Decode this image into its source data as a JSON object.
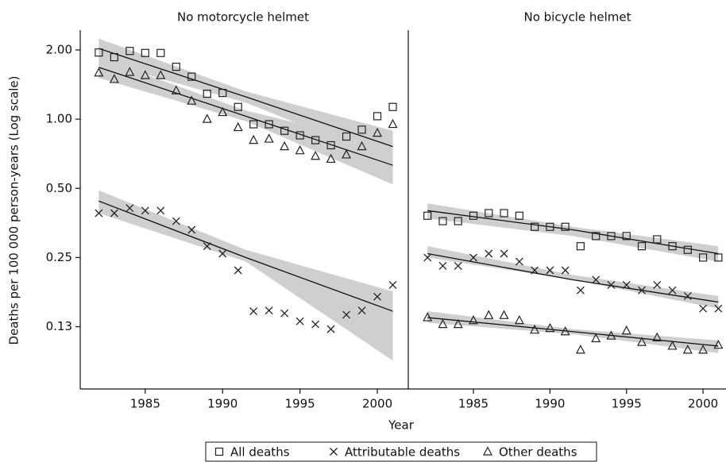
{
  "chart_data": [
    {
      "type": "scatter",
      "title": "No motorcycle helmet",
      "ylabel": "Deaths per 100 000 person-years (Log scale)",
      "xlabel": "Year",
      "log_y": true,
      "ylim": [
        0.067,
        2.4
      ],
      "yticks": [
        {
          "value": 0.125,
          "label": "0.13"
        },
        {
          "value": 0.25,
          "label": "0.25"
        },
        {
          "value": 0.5,
          "label": "0.50"
        },
        {
          "value": 1,
          "label": "1.00"
        },
        {
          "value": 2,
          "label": "2.00"
        }
      ],
      "xlim": [
        1980.8,
        2002
      ],
      "xticks": [
        1985,
        1990,
        1995,
        2000
      ],
      "x": [
        1982,
        1983,
        1984,
        1985,
        1986,
        1987,
        1988,
        1989,
        1990,
        1991,
        1992,
        1993,
        1994,
        1995,
        1996,
        1997,
        1998,
        1999,
        2000,
        2001
      ],
      "series": [
        {
          "name": "All deaths",
          "marker": "square",
          "color": "#222",
          "values": [
            1.95,
            1.86,
            1.98,
            1.94,
            1.94,
            1.69,
            1.53,
            1.29,
            1.3,
            1.13,
            0.95,
            0.95,
            0.89,
            0.85,
            0.81,
            0.77,
            0.84,
            0.9,
            1.03,
            1.13
          ],
          "fit": {
            "x": [
              1982,
              1991.5,
              2001
            ],
            "values": [
              2.03,
              1.25,
              0.76
            ],
            "lower": [
              1.79,
              1.18,
              0.65
            ],
            "upper": [
              2.24,
              1.32,
              0.89
            ]
          }
        },
        {
          "name": "Attributable deaths",
          "marker": "x",
          "color": "#222",
          "values": [
            0.39,
            0.39,
            0.41,
            0.4,
            0.4,
            0.36,
            0.33,
            0.28,
            0.26,
            0.22,
            0.146,
            0.147,
            0.143,
            0.132,
            0.128,
            0.122,
            0.141,
            0.147,
            0.169,
            0.19
          ],
          "fit": {
            "x": [
              1982,
              1991.5,
              2001
            ],
            "values": [
              0.44,
              0.25,
              0.146
            ],
            "lower": [
              0.39,
              0.24,
              0.089
            ],
            "upper": [
              0.49,
              0.27,
              0.178
            ]
          }
        },
        {
          "name": "Other deaths",
          "marker": "triangle",
          "color": "#222",
          "values": [
            1.59,
            1.49,
            1.6,
            1.55,
            1.55,
            1.33,
            1.2,
            1.0,
            1.07,
            0.92,
            0.81,
            0.82,
            0.76,
            0.73,
            0.69,
            0.67,
            0.7,
            0.76,
            0.87,
            0.95
          ],
          "fit": {
            "x": [
              1982,
              1991.5,
              2001
            ],
            "values": [
              1.68,
              1.03,
              0.63
            ],
            "lower": [
              1.51,
              0.98,
              0.52
            ],
            "upper": [
              1.85,
              1.09,
              0.76
            ]
          }
        }
      ]
    },
    {
      "type": "scatter",
      "title": "No bicycle helmet",
      "log_y": true,
      "ylim": [
        0.067,
        2.4
      ],
      "xlim": [
        1980.9,
        2001.5
      ],
      "xticks": [
        1985,
        1990,
        1995,
        2000
      ],
      "x": [
        1982,
        1983,
        1984,
        1985,
        1986,
        1987,
        1988,
        1989,
        1990,
        1991,
        1992,
        1993,
        1994,
        1995,
        1996,
        1997,
        1998,
        1999,
        2000,
        2001
      ],
      "series": [
        {
          "marker": "square",
          "color": "#222",
          "values": [
            0.38,
            0.36,
            0.36,
            0.38,
            0.39,
            0.39,
            0.38,
            0.34,
            0.34,
            0.34,
            0.28,
            0.31,
            0.31,
            0.31,
            0.28,
            0.3,
            0.28,
            0.27,
            0.25,
            0.25
          ],
          "fit": {
            "x": [
              1982,
              1991.5,
              2001
            ],
            "values": [
              0.4,
              0.33,
              0.26
            ],
            "lower": [
              0.37,
              0.31,
              0.24
            ],
            "upper": [
              0.43,
              0.34,
              0.28
            ]
          }
        },
        {
          "marker": "x",
          "color": "#222",
          "values": [
            0.25,
            0.23,
            0.23,
            0.25,
            0.26,
            0.26,
            0.24,
            0.22,
            0.22,
            0.22,
            0.18,
            0.2,
            0.19,
            0.19,
            0.18,
            0.19,
            0.18,
            0.17,
            0.15,
            0.15
          ],
          "fit": {
            "x": [
              1982,
              1991.5,
              2001
            ],
            "values": [
              0.26,
              0.2,
              0.16
            ],
            "lower": [
              0.25,
              0.2,
              0.15
            ],
            "upper": [
              0.28,
              0.21,
              0.17
            ]
          }
        },
        {
          "marker": "triangle",
          "color": "#222",
          "values": [
            0.137,
            0.128,
            0.128,
            0.133,
            0.14,
            0.14,
            0.133,
            0.121,
            0.123,
            0.119,
            0.099,
            0.111,
            0.114,
            0.12,
            0.107,
            0.112,
            0.103,
            0.099,
            0.099,
            0.104
          ],
          "fit": {
            "x": [
              1982,
              1991.5,
              2001
            ],
            "values": [
              0.137,
              0.119,
              0.103
            ],
            "lower": [
              0.13,
              0.116,
              0.096
            ],
            "upper": [
              0.146,
              0.122,
              0.109
            ]
          }
        }
      ]
    }
  ]
}
